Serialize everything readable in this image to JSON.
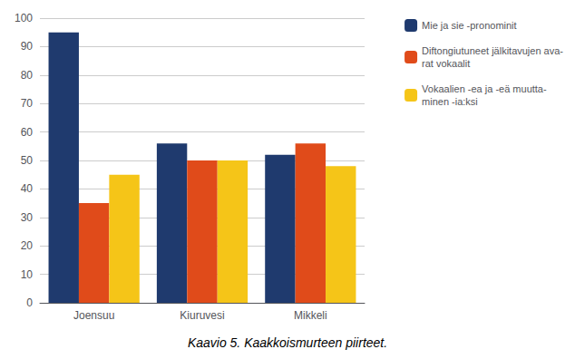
{
  "chart_data": {
    "type": "bar",
    "title": "Kaavio 5. Kaakkoismurteen piirteet.",
    "categories": [
      "Joensuu",
      "Kiuruvesi",
      "Mikkeli"
    ],
    "series": [
      {
        "name": "Mie ja sie -pronominit",
        "values": [
          95,
          56,
          52
        ],
        "color": "#1F3A6E"
      },
      {
        "name": "Diftongiutuneet jälkitavujen ava-\nrat vokaalit",
        "values": [
          35,
          50,
          56
        ],
        "color": "#E04B1A"
      },
      {
        "name": "Vokaalien -ea ja -eä muutta-\nminen -ia:ksi",
        "values": [
          45,
          50,
          48
        ],
        "color": "#F5C518"
      }
    ],
    "ylim": [
      0,
      100
    ],
    "yticks": [
      0,
      10,
      20,
      30,
      40,
      50,
      60,
      70,
      80,
      90,
      100
    ],
    "grid": true,
    "legend": "upper right"
  }
}
